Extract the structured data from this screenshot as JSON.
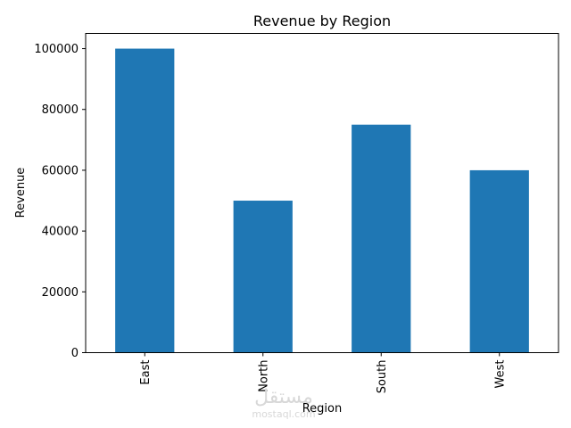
{
  "chart_data": {
    "type": "bar",
    "title": "Revenue by Region",
    "xlabel": "Region",
    "ylabel": "Revenue",
    "categories": [
      "East",
      "North",
      "South",
      "West"
    ],
    "values": [
      100000,
      50000,
      75000,
      60000
    ],
    "ylim": [
      0,
      105000
    ],
    "yticks": [
      0,
      20000,
      40000,
      60000,
      80000,
      100000
    ],
    "bar_color": "#1f77b4",
    "x_tick_rotation": "vertical",
    "grid": false,
    "legend": "none"
  },
  "watermark": {
    "script_text": "مستقل",
    "url_text": "mostaql.com"
  }
}
